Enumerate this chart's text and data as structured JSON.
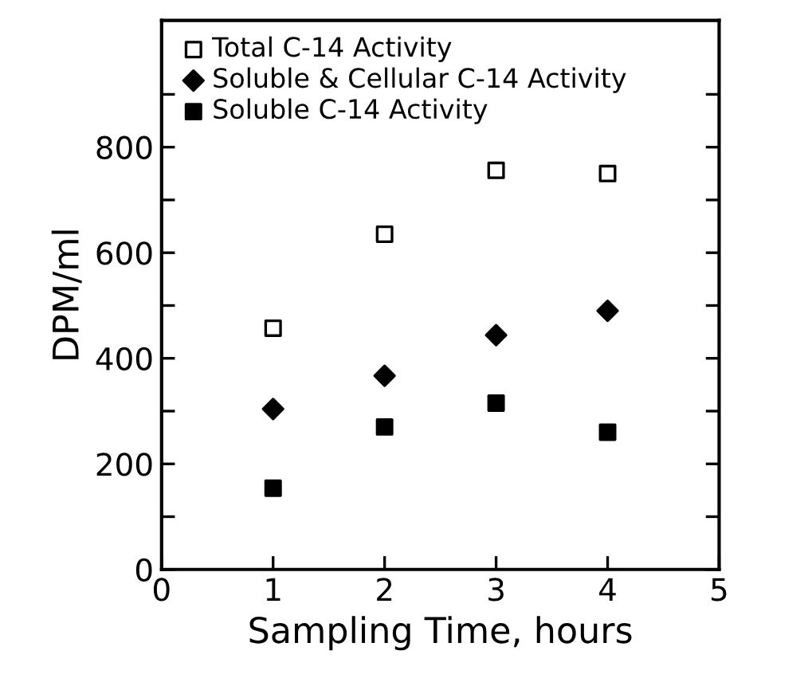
{
  "chart_data": {
    "type": "scatter",
    "xlabel": "Sampling Time, hours",
    "ylabel": "DPM/ml",
    "x": [
      1,
      2,
      3,
      4
    ],
    "series": [
      {
        "name": "Total C-14 Activity",
        "color": "#ffffff",
        "marker": "square",
        "values": [
          457,
          635,
          756,
          750
        ]
      },
      {
        "name": "Soluble & Cellular C-14 Activity",
        "color": "#000000",
        "marker": "diamond",
        "values": [
          304,
          367,
          444,
          490
        ]
      },
      {
        "name": "Soluble C-14 Activity",
        "color": "#000000",
        "marker": "square",
        "values": [
          154,
          270,
          315,
          260
        ]
      }
    ],
    "xlim": [
      0,
      5
    ],
    "xticks": [
      0,
      1,
      2,
      3,
      4,
      5
    ],
    "ylim": [
      0,
      1040
    ],
    "yticks": [
      0,
      {
        "value": 100,
        "label": null
      },
      200,
      {
        "value": 300,
        "label": null
      },
      400,
      {
        "value": 500,
        "label": null
      },
      600,
      {
        "value": 700,
        "label": null
      },
      800,
      {
        "value": 900,
        "label": null
      }
    ],
    "grid": false,
    "legend": "top left"
  }
}
